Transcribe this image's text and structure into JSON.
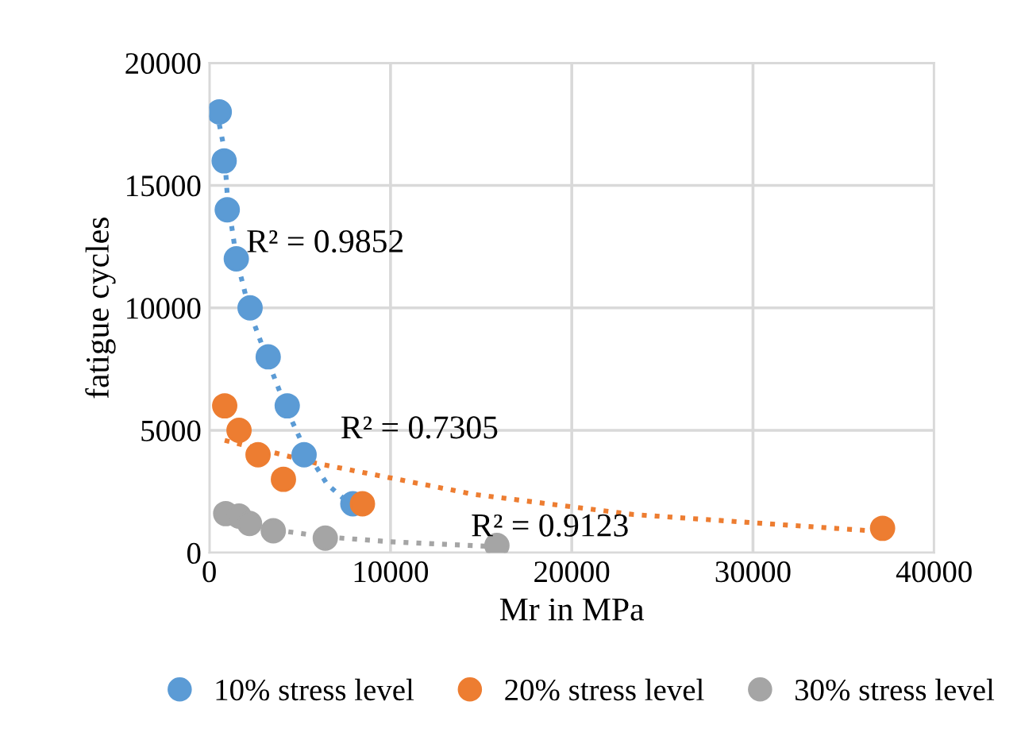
{
  "chart_data": {
    "type": "scatter",
    "xlabel": "Mr in MPa",
    "ylabel": "fatigue cycles",
    "xlim": [
      0,
      40000
    ],
    "ylim": [
      0,
      20000
    ],
    "xticks": [
      0,
      10000,
      20000,
      30000,
      40000
    ],
    "yticks": [
      0,
      5000,
      10000,
      15000,
      20000
    ],
    "grid": true,
    "legend": "bottom",
    "marker": "circle",
    "series": [
      {
        "name": "10% stress level",
        "color": "#5b9bd5",
        "x": [
          550,
          820,
          990,
          1490,
          2250,
          3250,
          4300,
          5230,
          7920
        ],
        "values": [
          18000,
          16000,
          14000,
          12000,
          10000,
          8000,
          6000,
          4000,
          2000
        ]
      },
      {
        "name": "20% stress level",
        "color": "#ed7d31",
        "x": [
          850,
          1640,
          2690,
          4090,
          8450,
          37150
        ],
        "values": [
          6000,
          5000,
          4000,
          3000,
          2000,
          1000
        ]
      },
      {
        "name": "30% stress level",
        "color": "#a5a5a5",
        "x": [
          905,
          1640,
          2220,
          3530,
          6400,
          15870
        ],
        "values": [
          1600,
          1500,
          1200,
          900,
          600,
          300
        ]
      },
      {
        "type": "line",
        "marker": "none",
        "line_style": "dotted",
        "color": "#5b9bd5",
        "x": [
          550,
          820,
          1000,
          1500,
          2250,
          3250,
          4300,
          5230,
          6500,
          7900
        ],
        "values": [
          17500,
          16500,
          14500,
          12000,
          9800,
          7800,
          5800,
          4300,
          2800,
          1900
        ]
      },
      {
        "type": "line",
        "marker": "none",
        "line_style": "dotted",
        "color": "#ed7d31",
        "x": [
          850,
          5870,
          14640,
          23410,
          36270
        ],
        "values": [
          4590,
          3660,
          2380,
          1560,
          910
        ]
      },
      {
        "type": "line",
        "marker": "none",
        "line_style": "dotted",
        "color": "#a5a5a5",
        "x": [
          900,
          2000,
          3500,
          6400,
          10000,
          15800
        ],
        "values": [
          1400,
          1150,
          950,
          650,
          450,
          250
        ]
      }
    ],
    "annotations": [
      "R² = 0.9852",
      "R² = 0.7305",
      "R² = 0.9123"
    ]
  }
}
